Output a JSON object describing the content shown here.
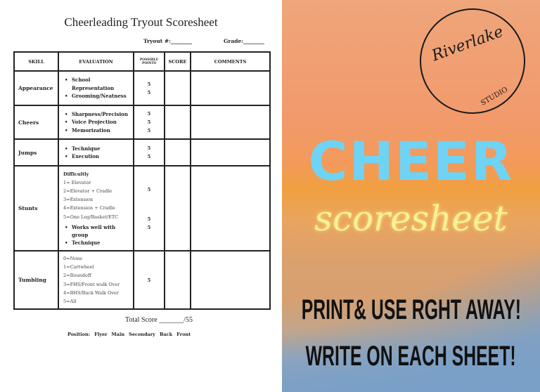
{
  "sheet": {
    "title": "Cheerleading Tryout Scoresheet",
    "tryout_label": "Tryout #:________",
    "grade_label": "Grade:________",
    "headers": [
      "SKILL",
      "EVALUATION",
      "POSSIBLE POINTS",
      "SCORE",
      "COMMENTS"
    ],
    "rows": [
      {
        "skill": "Appearance",
        "items": [
          "School Representation",
          "Grooming/Neatness"
        ],
        "points": [
          "5",
          "5"
        ]
      },
      {
        "skill": "Cheers",
        "items": [
          "Sharpness/Precision",
          "Voice Projection",
          "Memorization"
        ],
        "points": [
          "5",
          "5",
          "5"
        ]
      },
      {
        "skill": "Jumps",
        "items": [
          "Technique",
          "Execution"
        ],
        "points": [
          "5",
          "5"
        ]
      },
      {
        "skill": "Stunts",
        "heading": "Difficultly",
        "scale": [
          "1= Elevator",
          "2=Elevator + Cradle",
          "3=Extension",
          "4=Extension + Cradle",
          "5=One Leg/Basket/ETC"
        ],
        "items": [
          "Works well with group",
          "Technique"
        ],
        "points": [
          "5",
          "5",
          "5"
        ]
      },
      {
        "skill": "Tumbling",
        "scale": [
          "0=None",
          "1=Cartwheel",
          "2=Roundoff",
          "3=FHS/Front walk Over",
          "4=BHS/Back Walk Over",
          "5=All"
        ],
        "points": [
          "5"
        ]
      }
    ],
    "total": "Total Score _______/55",
    "position_label": "Position:",
    "positions": [
      "Flyer",
      "Main",
      "Secondary",
      "Back",
      "Front"
    ]
  },
  "promo": {
    "logo_script": "Riverlake",
    "logo_studio": "STUDIO",
    "headline": "CHEER",
    "subhead": "scoresheet",
    "line1": "PRINT& USE RGHT AWAY!",
    "line2": "WRITE ON EACH SHEET!",
    "colors": {
      "headline": "#6fd3f6",
      "subhead": "#f8f09a"
    }
  }
}
